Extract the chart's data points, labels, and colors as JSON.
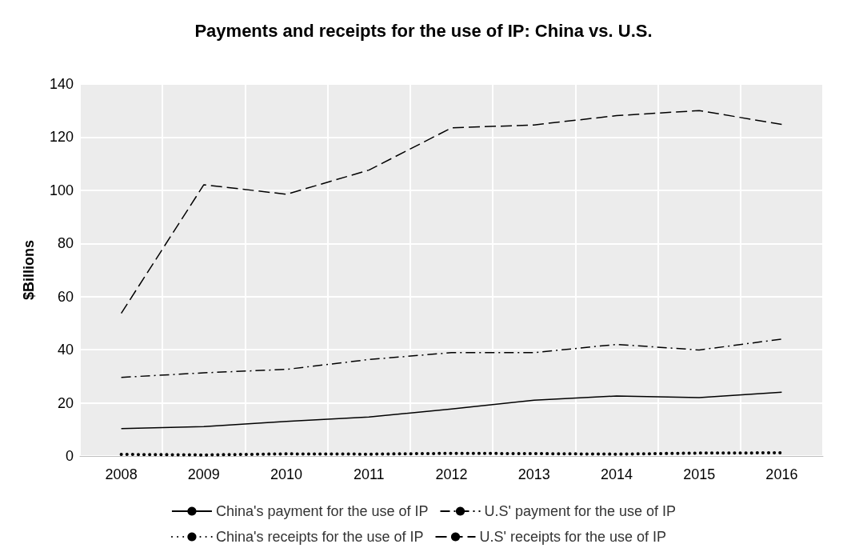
{
  "chart_data": {
    "type": "line",
    "title": "Payments and receipts for the use of IP: China vs. U.S.",
    "ylabel": "$Billions",
    "categories": [
      "2008",
      "2009",
      "2010",
      "2011",
      "2012",
      "2013",
      "2014",
      "2015",
      "2016"
    ],
    "series": [
      {
        "name": "China's payment for the use of IP",
        "color": "#000000",
        "line_style": "solid",
        "values": [
          10.3,
          11.1,
          13.0,
          14.7,
          17.7,
          21.0,
          22.6,
          22.0,
          24.0
        ]
      },
      {
        "name": "U.S' payment for the use of IP",
        "color": "#000000",
        "line_style": "dashdot",
        "values": [
          29.6,
          31.3,
          32.6,
          36.3,
          38.9,
          38.9,
          42.0,
          39.9,
          44.0
        ]
      },
      {
        "name": "China's receipts for the use of IP",
        "color": "#000000",
        "line_style": "dotted",
        "values": [
          0.6,
          0.4,
          0.8,
          0.7,
          1.0,
          0.9,
          0.7,
          1.1,
          1.2
        ]
      },
      {
        "name": "U.S' receipts for the use of IP",
        "color": "#000000",
        "line_style": "dashed",
        "values": [
          53.7,
          102.1,
          98.5,
          107.6,
          123.5,
          124.6,
          128.1,
          130.0,
          124.8
        ]
      }
    ],
    "ylim": [
      0,
      140
    ],
    "yticks": [
      0,
      20,
      40,
      60,
      80,
      100,
      120,
      140
    ],
    "grid": true,
    "legend": "bottom",
    "marker": "none"
  }
}
